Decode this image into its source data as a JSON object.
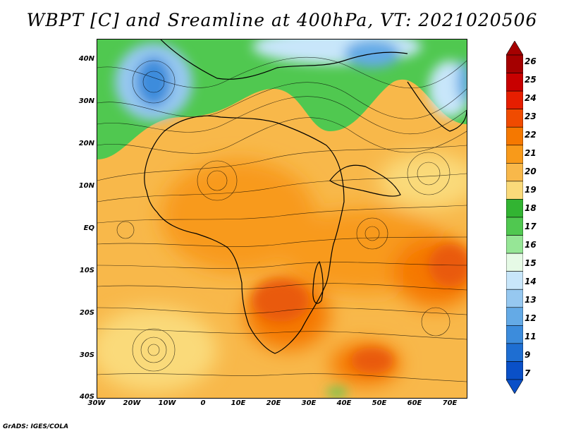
{
  "title": "WBPT [C] and Sreamline at 400hPa, VT: 2021020506",
  "credit": "GrADS: IGES/COLA",
  "lat_labels": [
    "40N",
    "30N",
    "20N",
    "10N",
    "EQ",
    "10S",
    "20S",
    "30S",
    "40S"
  ],
  "lon_labels": [
    "30W",
    "20W",
    "10W",
    "0",
    "10E",
    "20E",
    "30E",
    "40E",
    "50E",
    "60E",
    "70E"
  ],
  "colorbar": {
    "labels": [
      "26",
      "25",
      "24",
      "23",
      "22",
      "21",
      "20",
      "19",
      "18",
      "17",
      "16",
      "15",
      "14",
      "13",
      "12",
      "11",
      "9",
      "7"
    ],
    "colors": [
      "#a50000",
      "#c80000",
      "#e61e00",
      "#f04b00",
      "#f57800",
      "#f89a1a",
      "#f8b84a",
      "#fada7a",
      "#32b432",
      "#50c850",
      "#96e696",
      "#e6fae6",
      "#c8e6fa",
      "#96c8f0",
      "#64aae6",
      "#3c8cdc",
      "#1e6ed2",
      "#0a50c8"
    ]
  }
}
